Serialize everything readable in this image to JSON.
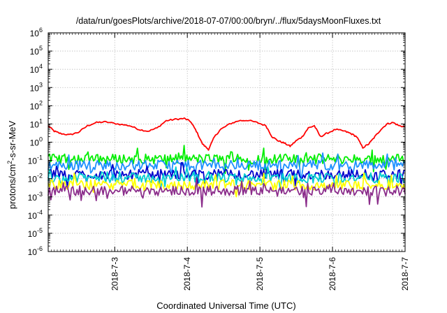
{
  "chart_data": {
    "type": "line",
    "title": "/data/run/goesPlots/archive/2018-07-07/00:00/bryn/../flux/5daysMoonFluxes.txt",
    "xlabel": "Coordinated Universal Time (UTC)",
    "ylabel": "protons/cm2-s-sr-MeV",
    "ylabel_parts": {
      "base": "protons/cm",
      "sup": "2",
      "rest": "-s-sr-MeV"
    },
    "yscale": "log",
    "ylim": [
      1e-06,
      1000000.0
    ],
    "xlim": [
      "2018-07-02 02:00",
      "2018-07-07 00:00"
    ],
    "grid": true,
    "y_ticks": [
      {
        "base": "10",
        "exp": "-6"
      },
      {
        "base": "10",
        "exp": "-5"
      },
      {
        "base": "10",
        "exp": "-4"
      },
      {
        "base": "10",
        "exp": "-3"
      },
      {
        "base": "10",
        "exp": "-2"
      },
      {
        "base": "10",
        "exp": "-1"
      },
      {
        "base": "10",
        "exp": "0"
      },
      {
        "base": "10",
        "exp": "1"
      },
      {
        "base": "10",
        "exp": "2"
      },
      {
        "base": "10",
        "exp": "3"
      },
      {
        "base": "10",
        "exp": "4"
      },
      {
        "base": "10",
        "exp": "5"
      },
      {
        "base": "10",
        "exp": "6"
      }
    ],
    "x_ticks": [
      "2018-7-3",
      "2018-7-4",
      "2018-7-5",
      "2018-7-6",
      "2018-7-7"
    ],
    "series": [
      {
        "color": "#ff0000",
        "values": [
          [
            "2018-07-02 02:00",
            8
          ],
          [
            "2018-07-02 04:00",
            4
          ],
          [
            "2018-07-02 06:00",
            3
          ],
          [
            "2018-07-02 09:00",
            2.5
          ],
          [
            "2018-07-02 12:00",
            3.5
          ],
          [
            "2018-07-02 15:00",
            8
          ],
          [
            "2018-07-02 18:00",
            12
          ],
          [
            "2018-07-02 21:00",
            13
          ],
          [
            "2018-07-03 01:00",
            10
          ],
          [
            "2018-07-03 05:00",
            8
          ],
          [
            "2018-07-03 08:00",
            5
          ],
          [
            "2018-07-03 11:00",
            4
          ],
          [
            "2018-07-03 14:00",
            6
          ],
          [
            "2018-07-03 17:00",
            15
          ],
          [
            "2018-07-03 20:00",
            18
          ],
          [
            "2018-07-03 23:00",
            20
          ],
          [
            "2018-07-04 01:00",
            14
          ],
          [
            "2018-07-04 03:00",
            4
          ],
          [
            "2018-07-04 05:00",
            0.8
          ],
          [
            "2018-07-04 07:00",
            0.4
          ],
          [
            "2018-07-04 09:00",
            2
          ],
          [
            "2018-07-04 11:00",
            5
          ],
          [
            "2018-07-04 14:00",
            10
          ],
          [
            "2018-07-04 17:00",
            15
          ],
          [
            "2018-07-04 20:00",
            16
          ],
          [
            "2018-07-04 23:00",
            12
          ],
          [
            "2018-07-05 02:00",
            8
          ],
          [
            "2018-07-05 04:00",
            2
          ],
          [
            "2018-07-05 06:00",
            1.2
          ],
          [
            "2018-07-05 08:00",
            0.9
          ],
          [
            "2018-07-05 10:00",
            0.6
          ],
          [
            "2018-07-05 12:00",
            1.2
          ],
          [
            "2018-07-05 14:00",
            2
          ],
          [
            "2018-07-05 16:00",
            6
          ],
          [
            "2018-07-05 18:00",
            8
          ],
          [
            "2018-07-05 20:00",
            2
          ],
          [
            "2018-07-05 22:00",
            3
          ],
          [
            "2018-07-06 01:00",
            5
          ],
          [
            "2018-07-06 04:00",
            4
          ],
          [
            "2018-07-06 06:00",
            3
          ],
          [
            "2018-07-06 08:00",
            2
          ],
          [
            "2018-07-06 10:00",
            0.5
          ],
          [
            "2018-07-06 12:00",
            0.8
          ],
          [
            "2018-07-06 14:00",
            2
          ],
          [
            "2018-07-06 16:00",
            5
          ],
          [
            "2018-07-06 18:00",
            10
          ],
          [
            "2018-07-06 20:00",
            12
          ],
          [
            "2018-07-06 22:00",
            8
          ],
          [
            "2018-07-07 00:00",
            7
          ]
        ]
      },
      {
        "color": "#00ee00",
        "base": 0.12
      },
      {
        "color": "#1e90ff",
        "base": 0.055
      },
      {
        "color": "#0000cd",
        "base": 0.017
      },
      {
        "color": "#00ced1",
        "base": 0.011
      },
      {
        "color": "#ffff00",
        "base": 0.0045
      },
      {
        "color": "#8b2d8b",
        "base": 0.0022
      }
    ]
  }
}
